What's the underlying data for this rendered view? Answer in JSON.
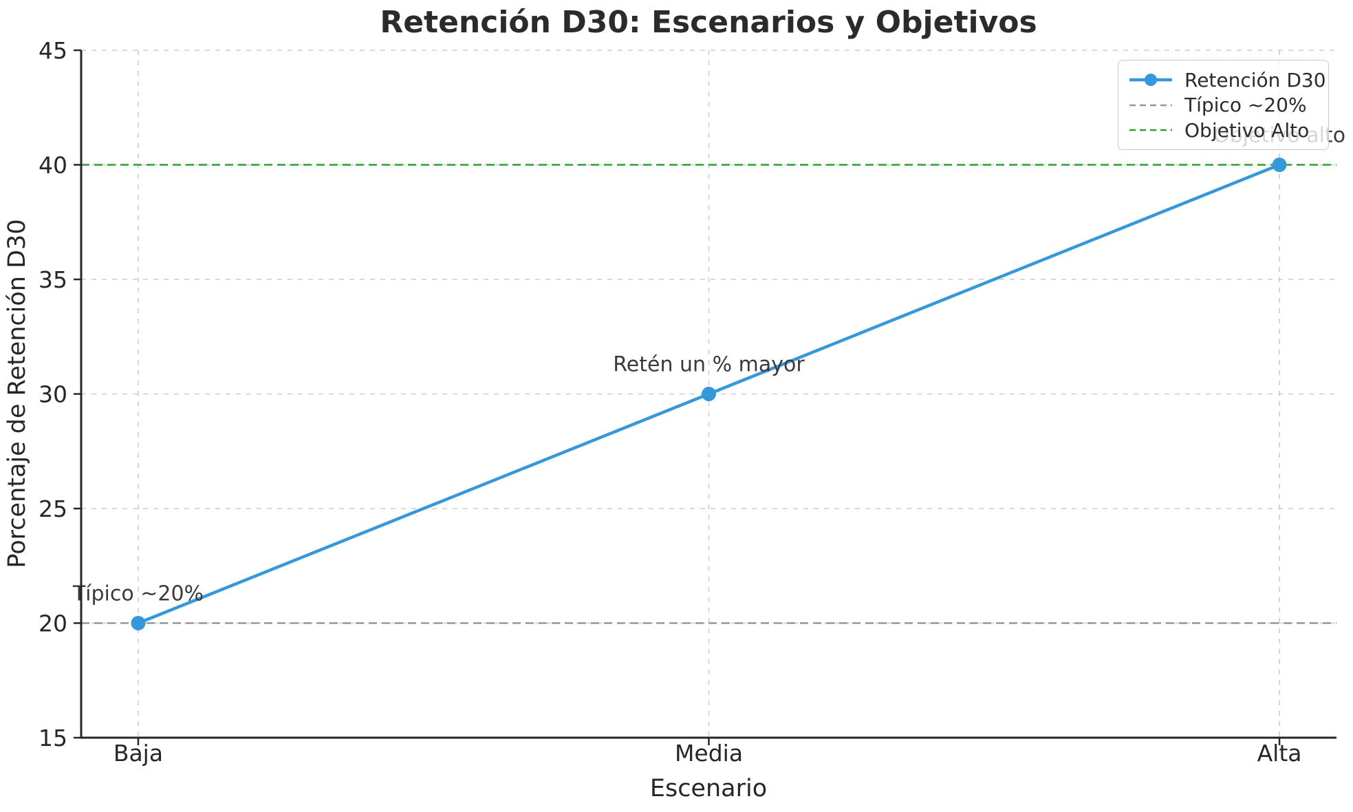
{
  "chart_data": {
    "type": "line",
    "title": "Retención D30: Escenarios y Objetivos",
    "xlabel": "Escenario",
    "ylabel": "Porcentaje de Retención D30",
    "categories": [
      "Baja",
      "Media",
      "Alta"
    ],
    "series": [
      {
        "name": "Retención D30",
        "values": [
          20,
          30,
          40
        ],
        "color": "#3498db",
        "style": "solid",
        "marker": "circle"
      }
    ],
    "reference_lines": [
      {
        "name": "Típico ~20%",
        "y": 20,
        "color": "#969696",
        "style": "dashed"
      },
      {
        "name": "Objetivo Alto",
        "y": 40,
        "color": "#2ca02c",
        "style": "dashed"
      }
    ],
    "annotations": [
      {
        "text": "Típico ~20%",
        "category": "Baja",
        "y": 20
      },
      {
        "text": "Retén un % mayor",
        "category": "Media",
        "y": 30
      },
      {
        "text": "Objetivo alto",
        "category": "Alta",
        "y": 40
      }
    ],
    "ylim": [
      15,
      45
    ],
    "yticks": [
      15,
      20,
      25,
      30,
      35,
      40,
      45
    ],
    "grid": true,
    "legend": {
      "position": "upper right",
      "entries": [
        "Retención D30",
        "Típico ~20%",
        "Objetivo Alto"
      ]
    },
    "colors": {
      "grid": "#cccccc",
      "axis": "#262626",
      "annotation": "#3a3a3a"
    }
  }
}
